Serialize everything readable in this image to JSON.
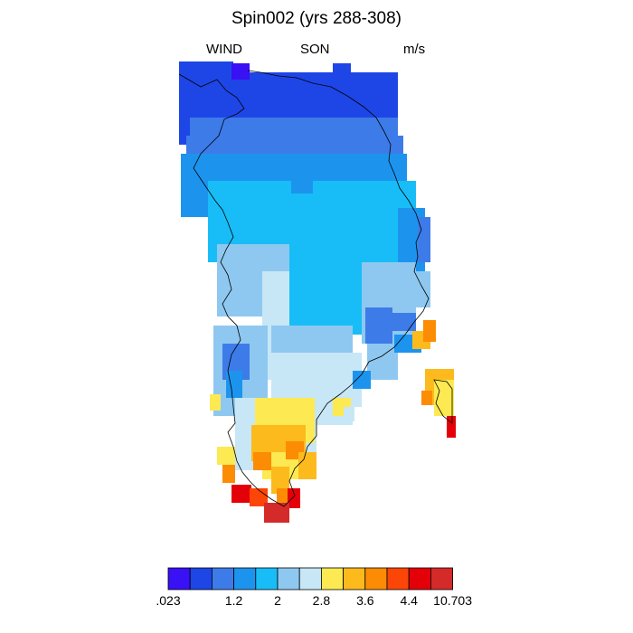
{
  "title": "Spin002 (yrs 288-308)",
  "variable": "WIND",
  "season": "SON",
  "units": "m/s",
  "legend": {
    "colors": [
      "#3a10f4",
      "#1e46e6",
      "#3d7be9",
      "#1c94ee",
      "#18bdf7",
      "#8ec8f0",
      "#c7e7f7",
      "#fde951",
      "#fcba1c",
      "#fc8c03",
      "#fc4607",
      "#e40009",
      "#d42a2a"
    ],
    "labels": [
      {
        "text": ".023",
        "boundary": 0
      },
      {
        "text": "1.2",
        "boundary": 3
      },
      {
        "text": "2",
        "boundary": 5
      },
      {
        "text": "2.8",
        "boundary": 7
      },
      {
        "text": "3.6",
        "boundary": 9
      },
      {
        "text": "4.4",
        "boundary": 11
      },
      {
        "text": "10.703",
        "boundary": 13
      }
    ]
  }
}
